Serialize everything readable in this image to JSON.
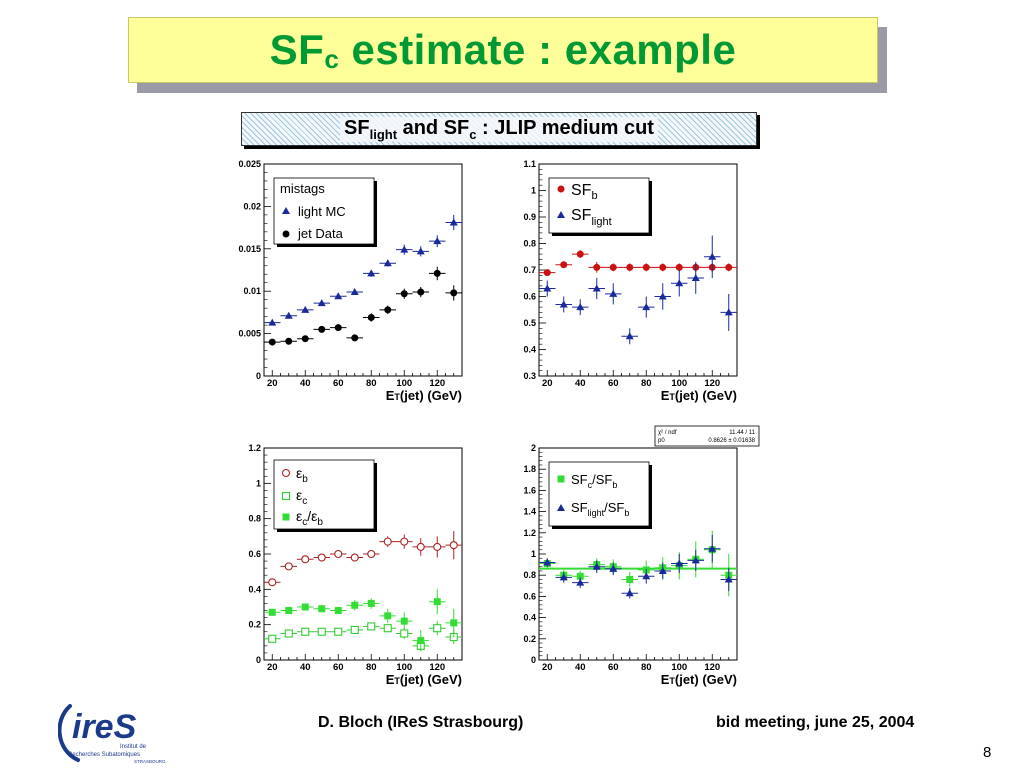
{
  "slide": {
    "title_main": "SF",
    "title_sub": "c",
    "title_rest": " estimate : example",
    "banner_a": "SF",
    "banner_a_sub": "light",
    "banner_b": " and SF",
    "banner_b_sub": "c",
    "banner_c": " : JLIP medium cut",
    "author": "D. Bloch (IReS Strasbourg)",
    "meeting": "bid meeting, june 25, 2004",
    "page": "8",
    "logo_letters": "ireS",
    "logo_line1": "Institut de",
    "logo_line2": "Recherches Subatomiques",
    "logo_line3": "STRASBOURG"
  },
  "colors": {
    "title": "#009933",
    "title_bg": "#ffff99",
    "blue": "#1a2a9a",
    "black": "#000000",
    "red": "#cc1111",
    "green": "#33dd33",
    "darkred": "#aa2222",
    "fit_line": "#33dd33"
  },
  "chart_data": [
    {
      "type": "scatter",
      "xlabel": "ET(jet) (GeV)",
      "ylabel": "",
      "xlim": [
        15,
        135
      ],
      "ylim": [
        0,
        0.025
      ],
      "xticks": [
        20,
        40,
        60,
        80,
        100,
        120
      ],
      "yticks": [
        0,
        0.005,
        0.01,
        0.015,
        0.02,
        0.025
      ],
      "ytick_labels": [
        "0",
        "0.005",
        "0.01",
        "0.015",
        "0.02",
        "0.025"
      ],
      "legend_title": "mistags",
      "legend_position": "top-left",
      "series": [
        {
          "name": "light MC",
          "marker": "triangle",
          "color": "#1a2a9a",
          "x": [
            20,
            30,
            40,
            50,
            60,
            70,
            80,
            90,
            100,
            110,
            120,
            130
          ],
          "y": [
            0.0063,
            0.0071,
            0.0078,
            0.0086,
            0.0094,
            0.0099,
            0.0121,
            0.0133,
            0.0149,
            0.0147,
            0.0159,
            0.0181
          ],
          "yerr": [
            0.0002,
            0.0002,
            0.0002,
            0.0002,
            0.0003,
            0.0003,
            0.0004,
            0.0004,
            0.0006,
            0.0006,
            0.0007,
            0.0009
          ],
          "xerr": 5
        },
        {
          "name": "jet Data",
          "marker": "circle",
          "color": "#000000",
          "x": [
            20,
            30,
            40,
            50,
            60,
            70,
            80,
            90,
            100,
            110,
            120,
            130
          ],
          "y": [
            0.004,
            0.0041,
            0.0044,
            0.0055,
            0.0057,
            0.0045,
            0.0069,
            0.0078,
            0.0097,
            0.0099,
            0.0121,
            0.0098
          ],
          "yerr": [
            0.0002,
            0.0002,
            0.0002,
            0.0003,
            0.0003,
            0.0004,
            0.0005,
            0.0005,
            0.0006,
            0.0006,
            0.0008,
            0.0009
          ],
          "xerr": 5
        }
      ]
    },
    {
      "type": "scatter",
      "xlabel": "ET(jet) (GeV)",
      "ylabel": "",
      "xlim": [
        15,
        135
      ],
      "ylim": [
        0.3,
        1.1
      ],
      "xticks": [
        20,
        40,
        60,
        80,
        100,
        120
      ],
      "yticks": [
        0.3,
        0.4,
        0.5,
        0.6,
        0.7,
        0.8,
        0.9,
        1,
        1.1
      ],
      "ytick_labels": [
        "0.3",
        "0.4",
        "0.5",
        "0.6",
        "0.7",
        "0.8",
        "0.9",
        "1",
        "1.1"
      ],
      "legend_position": "top-left",
      "series": [
        {
          "name": "SF_b",
          "marker": "circle",
          "color": "#cc1111",
          "x": [
            20,
            30,
            40,
            50,
            60,
            70,
            80,
            90,
            100,
            110,
            120,
            130
          ],
          "y": [
            0.69,
            0.72,
            0.76,
            0.71,
            0.71,
            0.71,
            0.71,
            0.71,
            0.71,
            0.71,
            0.71,
            0.71
          ],
          "yerr": [
            0.01,
            0.01,
            0.015,
            0.02,
            0.015,
            0.015,
            0.015,
            0.015,
            0.015,
            0.015,
            0.015,
            0.015
          ],
          "xerr": 5
        },
        {
          "name": "SF_light",
          "marker": "triangle",
          "color": "#1a2a9a",
          "x": [
            20,
            30,
            40,
            50,
            60,
            70,
            80,
            90,
            100,
            110,
            120,
            130
          ],
          "y": [
            0.63,
            0.57,
            0.56,
            0.63,
            0.61,
            0.45,
            0.56,
            0.6,
            0.65,
            0.67,
            0.75,
            0.54
          ],
          "yerr": [
            0.03,
            0.03,
            0.03,
            0.04,
            0.04,
            0.03,
            0.04,
            0.05,
            0.05,
            0.06,
            0.08,
            0.07
          ],
          "xerr": 5
        }
      ]
    },
    {
      "type": "scatter",
      "xlabel": "ET(jet) (GeV)",
      "ylabel": "",
      "xlim": [
        15,
        135
      ],
      "ylim": [
        0,
        1.2
      ],
      "xticks": [
        20,
        40,
        60,
        80,
        100,
        120
      ],
      "yticks": [
        0,
        0.2,
        0.4,
        0.6,
        0.8,
        1,
        1.2
      ],
      "ytick_labels": [
        "0",
        "0.2",
        "0.4",
        "0.6",
        "0.8",
        "1",
        "1.2"
      ],
      "legend_position": "top-left",
      "series": [
        {
          "name": "ε_b",
          "marker": "open-circle",
          "color": "#aa2222",
          "x": [
            20,
            30,
            40,
            50,
            60,
            70,
            80,
            90,
            100,
            110,
            120,
            130
          ],
          "y": [
            0.44,
            0.53,
            0.57,
            0.58,
            0.6,
            0.58,
            0.6,
            0.67,
            0.67,
            0.64,
            0.64,
            0.65
          ],
          "yerr": [
            0.02,
            0.015,
            0.015,
            0.015,
            0.015,
            0.02,
            0.02,
            0.03,
            0.04,
            0.05,
            0.06,
            0.08
          ],
          "xerr": 5
        },
        {
          "name": "ε_c",
          "marker": "open-square",
          "color": "#33cc33",
          "x": [
            20,
            30,
            40,
            50,
            60,
            70,
            80,
            90,
            100,
            110,
            120,
            130
          ],
          "y": [
            0.12,
            0.15,
            0.16,
            0.16,
            0.16,
            0.17,
            0.19,
            0.18,
            0.15,
            0.08,
            0.18,
            0.13
          ],
          "yerr": [
            0.01,
            0.01,
            0.01,
            0.01,
            0.01,
            0.015,
            0.02,
            0.02,
            0.03,
            0.03,
            0.04,
            0.04
          ],
          "xerr": 5
        },
        {
          "name": "ε_c/ε_b",
          "marker": "square",
          "color": "#33dd33",
          "x": [
            20,
            30,
            40,
            50,
            60,
            70,
            80,
            90,
            100,
            110,
            120,
            130
          ],
          "y": [
            0.27,
            0.28,
            0.3,
            0.29,
            0.28,
            0.31,
            0.32,
            0.25,
            0.22,
            0.11,
            0.33,
            0.21
          ],
          "yerr": [
            0.02,
            0.02,
            0.02,
            0.02,
            0.02,
            0.03,
            0.03,
            0.04,
            0.05,
            0.06,
            0.07,
            0.08
          ],
          "xerr": 5
        }
      ]
    },
    {
      "type": "scatter",
      "xlabel": "ET(jet) (GeV)",
      "ylabel": "",
      "xlim": [
        15,
        135
      ],
      "ylim": [
        0,
        2
      ],
      "xticks": [
        20,
        40,
        60,
        80,
        100,
        120
      ],
      "yticks": [
        0,
        0.2,
        0.4,
        0.6,
        0.8,
        1,
        1.2,
        1.4,
        1.6,
        1.8,
        2
      ],
      "ytick_labels": [
        "0",
        "0.2",
        "0.4",
        "0.6",
        "0.8",
        "1",
        "1.2",
        "1.4",
        "1.6",
        "1.8",
        "2"
      ],
      "legend_position": "top-left",
      "fit": {
        "chi2_label": "χ² / ndf",
        "chi2_value": "11.44 / 11",
        "p0_label": "p0",
        "p0_value": "0.8626 ± 0.01638",
        "value": 0.8626
      },
      "series": [
        {
          "name": "SF_c/SF_b",
          "marker": "square",
          "color": "#33dd33",
          "x": [
            20,
            30,
            40,
            50,
            60,
            70,
            80,
            90,
            100,
            110,
            120,
            130
          ],
          "y": [
            0.91,
            0.8,
            0.79,
            0.9,
            0.88,
            0.76,
            0.85,
            0.87,
            0.89,
            0.95,
            1.04,
            0.8
          ],
          "yerr": [
            0.05,
            0.05,
            0.05,
            0.06,
            0.07,
            0.07,
            0.09,
            0.1,
            0.13,
            0.17,
            0.18,
            0.2
          ],
          "xerr": 5
        },
        {
          "name": "SF_light/SF_b",
          "marker": "triangle",
          "color": "#1a2a9a",
          "x": [
            20,
            30,
            40,
            50,
            60,
            70,
            80,
            90,
            100,
            110,
            120,
            130
          ],
          "y": [
            0.92,
            0.78,
            0.73,
            0.88,
            0.86,
            0.63,
            0.79,
            0.84,
            0.91,
            0.94,
            1.05,
            0.76
          ],
          "yerr": [
            0.04,
            0.05,
            0.05,
            0.06,
            0.06,
            0.05,
            0.07,
            0.08,
            0.09,
            0.1,
            0.13,
            0.11
          ],
          "xerr": 5
        }
      ]
    }
  ]
}
